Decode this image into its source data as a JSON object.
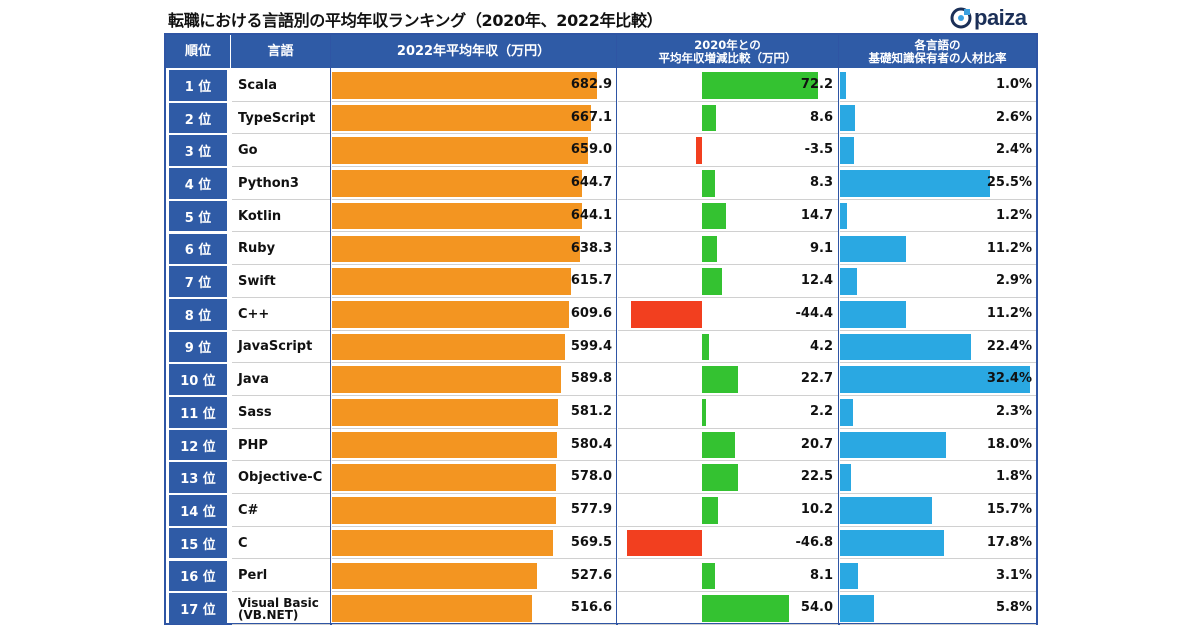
{
  "title": "転職における言語別の平均年収ランキング（2020年、2022年比較）",
  "logo": {
    "text": "paiza"
  },
  "colors": {
    "header": "#2f5ba6",
    "salary_bar": "#f39521",
    "increase_bar": "#34c231",
    "decrease_bar": "#f23f1f",
    "ratio_bar": "#2aa8e2"
  },
  "headers": {
    "rank": "順位",
    "language": "言語",
    "salary": "2022年平均年収（万円）",
    "change_line1": "2020年との",
    "change_line2": "平均年収増減比較（万円）",
    "ratio_line1": "各言語の",
    "ratio_line2": "基礎知識保有者の人材比率"
  },
  "chart_data": {
    "type": "bar",
    "title": "転職における言語別の平均年収ランキング（2020年、2022年比較）",
    "series": [
      {
        "name": "2022年平均年収（万円）",
        "values": [
          682.9,
          667.1,
          659.0,
          644.7,
          644.1,
          638.3,
          615.7,
          609.6,
          599.4,
          589.8,
          581.2,
          580.4,
          578.0,
          577.9,
          569.5,
          527.6,
          516.6
        ]
      },
      {
        "name": "2020年との平均年収増減比較（万円）",
        "values": [
          72.2,
          8.6,
          -3.5,
          8.3,
          14.7,
          9.1,
          12.4,
          -44.4,
          4.2,
          22.7,
          2.2,
          20.7,
          22.5,
          10.2,
          -46.8,
          8.1,
          54.0
        ]
      },
      {
        "name": "各言語の基礎知識保有者の人材比率",
        "values": [
          1.0,
          2.6,
          2.4,
          25.5,
          1.2,
          11.2,
          2.9,
          11.2,
          22.4,
          32.4,
          2.3,
          18.0,
          1.8,
          15.7,
          17.8,
          3.1,
          5.8
        ]
      }
    ],
    "rows": [
      {
        "rank": "1 位",
        "language": "Scala",
        "salary": "682.9",
        "change": "72.2",
        "ratio": "1.0%"
      },
      {
        "rank": "2 位",
        "language": "TypeScript",
        "salary": "667.1",
        "change": "8.6",
        "ratio": "2.6%"
      },
      {
        "rank": "3 位",
        "language": "Go",
        "salary": "659.0",
        "change": "-3.5",
        "ratio": "2.4%"
      },
      {
        "rank": "4 位",
        "language": "Python3",
        "salary": "644.7",
        "change": "8.3",
        "ratio": "25.5%"
      },
      {
        "rank": "5 位",
        "language": "Kotlin",
        "salary": "644.1",
        "change": "14.7",
        "ratio": "1.2%"
      },
      {
        "rank": "6 位",
        "language": "Ruby",
        "salary": "638.3",
        "change": "9.1",
        "ratio": "11.2%"
      },
      {
        "rank": "7 位",
        "language": "Swift",
        "salary": "615.7",
        "change": "12.4",
        "ratio": "2.9%"
      },
      {
        "rank": "8 位",
        "language": "C++",
        "salary": "609.6",
        "change": "-44.4",
        "ratio": "11.2%"
      },
      {
        "rank": "9 位",
        "language": "JavaScript",
        "salary": "599.4",
        "change": "4.2",
        "ratio": "22.4%"
      },
      {
        "rank": "10 位",
        "language": "Java",
        "salary": "589.8",
        "change": "22.7",
        "ratio": "32.4%"
      },
      {
        "rank": "11 位",
        "language": "Sass",
        "salary": "581.2",
        "change": "2.2",
        "ratio": "2.3%"
      },
      {
        "rank": "12 位",
        "language": "PHP",
        "salary": "580.4",
        "change": "20.7",
        "ratio": "18.0%"
      },
      {
        "rank": "13 位",
        "language": "Objective-C",
        "salary": "578.0",
        "change": "22.5",
        "ratio": "1.8%"
      },
      {
        "rank": "14 位",
        "language": "C#",
        "salary": "577.9",
        "change": "10.2",
        "ratio": "15.7%"
      },
      {
        "rank": "15 位",
        "language": "C",
        "salary": "569.5",
        "change": "-46.8",
        "ratio": "17.8%"
      },
      {
        "rank": "16 位",
        "language": "Perl",
        "salary": "527.6",
        "change": "8.1",
        "ratio": "3.1%"
      },
      {
        "rank": "17 位",
        "language": "Visual Basic (VB.NET)",
        "salary": "516.6",
        "change": "54.0",
        "ratio": "5.8%"
      }
    ]
  }
}
